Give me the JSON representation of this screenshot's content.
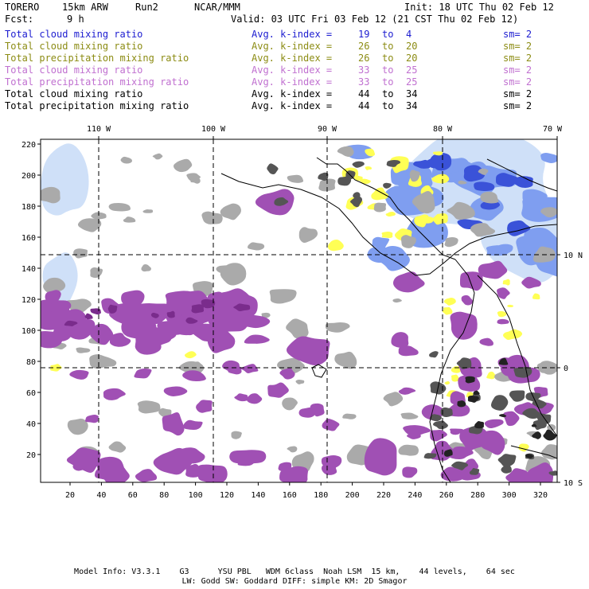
{
  "header": {
    "model": "TORERO",
    "resolution": "15km ARW",
    "run": "Run2",
    "org": "NCAR/MMM",
    "init": "Init: 18 UTC Thu 02 Feb 12",
    "fcst_label": "Fcst:",
    "fcst_value": "9 h",
    "valid": "Valid: 03 UTC Fri 03 Feb 12 (21 CST Thu 02 Feb 12)"
  },
  "legend_rows": [
    {
      "field": "Total cloud mixing ratio",
      "kindex": "Avg. k-index =",
      "from": "19",
      "to_word": "to",
      "to": "4",
      "sm": "sm= 2",
      "color": "#1c1cd0"
    },
    {
      "field": "Total cloud mixing ratio",
      "kindex": "Avg. k-index =",
      "from": "26",
      "to_word": "to",
      "to": "20",
      "sm": "sm= 2",
      "color": "#8c8c14"
    },
    {
      "field": "Total precipitation mixing ratio",
      "kindex": "Avg. k-index =",
      "from": "26",
      "to_word": "to",
      "to": "20",
      "sm": "sm= 2",
      "color": "#8c8c14"
    },
    {
      "field": "Total cloud mixing ratio",
      "kindex": "Avg. k-index =",
      "from": "33",
      "to_word": "to",
      "to": "25",
      "sm": "sm= 2",
      "color": "#c070d0"
    },
    {
      "field": "Total precipitation mixing ratio",
      "kindex": "Avg. k-index =",
      "from": "33",
      "to_word": "to",
      "to": "25",
      "sm": "sm= 2",
      "color": "#c070d0"
    },
    {
      "field": "Total cloud mixing ratio",
      "kindex": "Avg. k-index =",
      "from": "44",
      "to_word": "to",
      "to": "34",
      "sm": "sm= 2",
      "color": "#000000"
    },
    {
      "field": "Total precipitation mixing ratio",
      "kindex": "Avg. k-index =",
      "from": "44",
      "to_word": "to",
      "to": "34",
      "sm": "sm= 2",
      "color": "#000000"
    }
  ],
  "map": {
    "top_lon_labels": [
      "110 W",
      "100 W",
      "90 W",
      "80 W",
      "70 W"
    ],
    "right_lat_labels": [
      "10 N",
      "0",
      "10 S"
    ],
    "left_y_ticks": [
      "220",
      "200",
      "180",
      "160",
      "140",
      "120",
      "100",
      "80",
      "60",
      "40",
      "20"
    ],
    "bottom_x_ticks": [
      "20",
      "40",
      "60",
      "80",
      "100",
      "120",
      "140",
      "160",
      "180",
      "200",
      "220",
      "240",
      "260",
      "280",
      "300",
      "320"
    ],
    "colors": {
      "light_blue": "#cfe0f8",
      "mid_blue": "#7f9ef0",
      "deep_blue": "#3a52d8",
      "yellow": "#ffff55",
      "purple": "#a050b4",
      "dark_purple": "#7a2c8c",
      "gray": "#aaaaaa",
      "dark_gray": "#555555",
      "black": "#222222"
    }
  },
  "footer": {
    "line1": "Model Info: V3.3.1    G3      YSU PBL   WDM 6class  Noah LSM  15 km,    44 levels,    64 sec",
    "line2": "LW: Godd SW: Goddard DIFF: simple KM: 2D Smagor"
  }
}
